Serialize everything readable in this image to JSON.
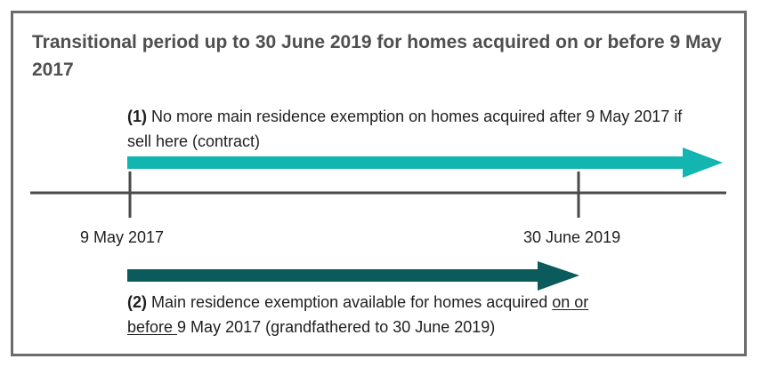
{
  "title": "Transitional period up to 30 June 2019 for homes acquired on or before 9 May 2017",
  "arrow_1": {
    "number": "(1)",
    "text": " No more main residence exemption on homes acquired after 9 May 2017 if sell here (contract)",
    "color": "#12b5b0"
  },
  "arrow_2": {
    "number": "(2)",
    "text_before": " Main residence exemption available for homes acquired ",
    "text_underlined": "on or before ",
    "text_after": "9 May 2017 (grandfathered to 30 June 2019)",
    "color": "#0b5a5c"
  },
  "timeline": {
    "start_label": "9 May 2017",
    "end_label": "30 June 2019",
    "line_color": "#4a4a4a"
  },
  "frame_color": "#6b6b6b"
}
